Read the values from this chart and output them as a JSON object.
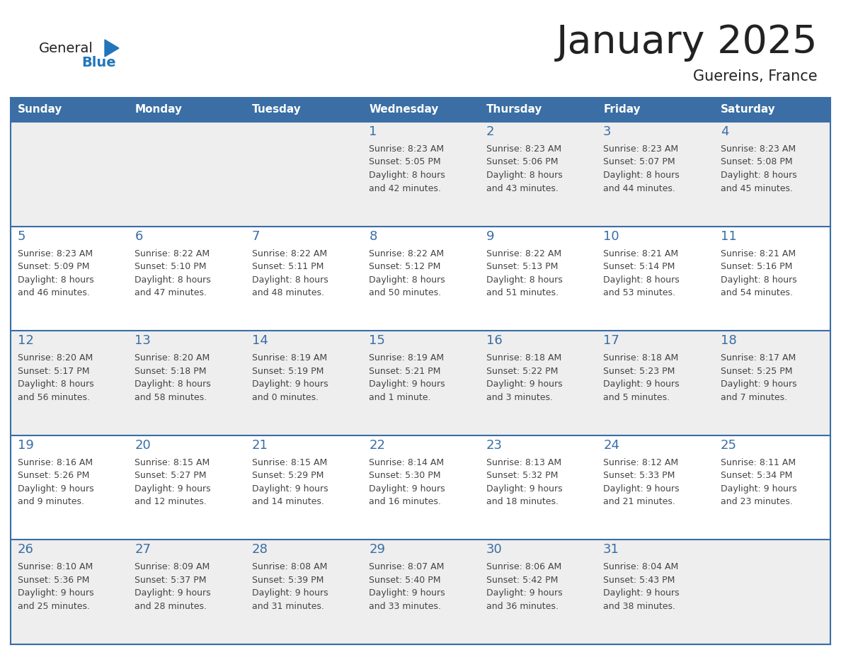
{
  "title": "January 2025",
  "subtitle": "Guereins, France",
  "days_of_week": [
    "Sunday",
    "Monday",
    "Tuesday",
    "Wednesday",
    "Thursday",
    "Friday",
    "Saturday"
  ],
  "header_bg": "#3a6ea5",
  "header_text_color": "#ffffff",
  "odd_row_bg": "#eeeeee",
  "even_row_bg": "#ffffff",
  "day_num_color": "#3a6ea5",
  "cell_text_color": "#444444",
  "border_color": "#3a6ea5",
  "logo_general_color": "#222222",
  "logo_blue_color": "#2176bb",
  "title_color": "#222222",
  "calendar_data": [
    [
      {
        "day": "",
        "info": ""
      },
      {
        "day": "",
        "info": ""
      },
      {
        "day": "",
        "info": ""
      },
      {
        "day": "1",
        "info": "Sunrise: 8:23 AM\nSunset: 5:05 PM\nDaylight: 8 hours\nand 42 minutes."
      },
      {
        "day": "2",
        "info": "Sunrise: 8:23 AM\nSunset: 5:06 PM\nDaylight: 8 hours\nand 43 minutes."
      },
      {
        "day": "3",
        "info": "Sunrise: 8:23 AM\nSunset: 5:07 PM\nDaylight: 8 hours\nand 44 minutes."
      },
      {
        "day": "4",
        "info": "Sunrise: 8:23 AM\nSunset: 5:08 PM\nDaylight: 8 hours\nand 45 minutes."
      }
    ],
    [
      {
        "day": "5",
        "info": "Sunrise: 8:23 AM\nSunset: 5:09 PM\nDaylight: 8 hours\nand 46 minutes."
      },
      {
        "day": "6",
        "info": "Sunrise: 8:22 AM\nSunset: 5:10 PM\nDaylight: 8 hours\nand 47 minutes."
      },
      {
        "day": "7",
        "info": "Sunrise: 8:22 AM\nSunset: 5:11 PM\nDaylight: 8 hours\nand 48 minutes."
      },
      {
        "day": "8",
        "info": "Sunrise: 8:22 AM\nSunset: 5:12 PM\nDaylight: 8 hours\nand 50 minutes."
      },
      {
        "day": "9",
        "info": "Sunrise: 8:22 AM\nSunset: 5:13 PM\nDaylight: 8 hours\nand 51 minutes."
      },
      {
        "day": "10",
        "info": "Sunrise: 8:21 AM\nSunset: 5:14 PM\nDaylight: 8 hours\nand 53 minutes."
      },
      {
        "day": "11",
        "info": "Sunrise: 8:21 AM\nSunset: 5:16 PM\nDaylight: 8 hours\nand 54 minutes."
      }
    ],
    [
      {
        "day": "12",
        "info": "Sunrise: 8:20 AM\nSunset: 5:17 PM\nDaylight: 8 hours\nand 56 minutes."
      },
      {
        "day": "13",
        "info": "Sunrise: 8:20 AM\nSunset: 5:18 PM\nDaylight: 8 hours\nand 58 minutes."
      },
      {
        "day": "14",
        "info": "Sunrise: 8:19 AM\nSunset: 5:19 PM\nDaylight: 9 hours\nand 0 minutes."
      },
      {
        "day": "15",
        "info": "Sunrise: 8:19 AM\nSunset: 5:21 PM\nDaylight: 9 hours\nand 1 minute."
      },
      {
        "day": "16",
        "info": "Sunrise: 8:18 AM\nSunset: 5:22 PM\nDaylight: 9 hours\nand 3 minutes."
      },
      {
        "day": "17",
        "info": "Sunrise: 8:18 AM\nSunset: 5:23 PM\nDaylight: 9 hours\nand 5 minutes."
      },
      {
        "day": "18",
        "info": "Sunrise: 8:17 AM\nSunset: 5:25 PM\nDaylight: 9 hours\nand 7 minutes."
      }
    ],
    [
      {
        "day": "19",
        "info": "Sunrise: 8:16 AM\nSunset: 5:26 PM\nDaylight: 9 hours\nand 9 minutes."
      },
      {
        "day": "20",
        "info": "Sunrise: 8:15 AM\nSunset: 5:27 PM\nDaylight: 9 hours\nand 12 minutes."
      },
      {
        "day": "21",
        "info": "Sunrise: 8:15 AM\nSunset: 5:29 PM\nDaylight: 9 hours\nand 14 minutes."
      },
      {
        "day": "22",
        "info": "Sunrise: 8:14 AM\nSunset: 5:30 PM\nDaylight: 9 hours\nand 16 minutes."
      },
      {
        "day": "23",
        "info": "Sunrise: 8:13 AM\nSunset: 5:32 PM\nDaylight: 9 hours\nand 18 minutes."
      },
      {
        "day": "24",
        "info": "Sunrise: 8:12 AM\nSunset: 5:33 PM\nDaylight: 9 hours\nand 21 minutes."
      },
      {
        "day": "25",
        "info": "Sunrise: 8:11 AM\nSunset: 5:34 PM\nDaylight: 9 hours\nand 23 minutes."
      }
    ],
    [
      {
        "day": "26",
        "info": "Sunrise: 8:10 AM\nSunset: 5:36 PM\nDaylight: 9 hours\nand 25 minutes."
      },
      {
        "day": "27",
        "info": "Sunrise: 8:09 AM\nSunset: 5:37 PM\nDaylight: 9 hours\nand 28 minutes."
      },
      {
        "day": "28",
        "info": "Sunrise: 8:08 AM\nSunset: 5:39 PM\nDaylight: 9 hours\nand 31 minutes."
      },
      {
        "day": "29",
        "info": "Sunrise: 8:07 AM\nSunset: 5:40 PM\nDaylight: 9 hours\nand 33 minutes."
      },
      {
        "day": "30",
        "info": "Sunrise: 8:06 AM\nSunset: 5:42 PM\nDaylight: 9 hours\nand 36 minutes."
      },
      {
        "day": "31",
        "info": "Sunrise: 8:04 AM\nSunset: 5:43 PM\nDaylight: 9 hours\nand 38 minutes."
      },
      {
        "day": "",
        "info": ""
      }
    ]
  ]
}
